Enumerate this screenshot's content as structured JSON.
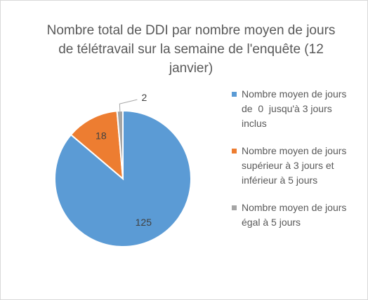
{
  "chart_data": {
    "type": "pie",
    "title": "Nombre total de DDI par nombre moyen de jours de télétravail sur la semaine de l'enquête (12 janvier)",
    "categories": [
      "Nombre moyen de jours de  0  jusqu'à 3 jours inclus",
      "Nombre moyen de jours supérieur à 3 jours et inférieur à 5 jours",
      "Nombre moyen de jours  égal à 5 jours"
    ],
    "values": [
      125,
      18,
      2
    ],
    "colors": [
      "#5b9bd5",
      "#ed7d31",
      "#a5a5a5"
    ],
    "legend": "right"
  }
}
